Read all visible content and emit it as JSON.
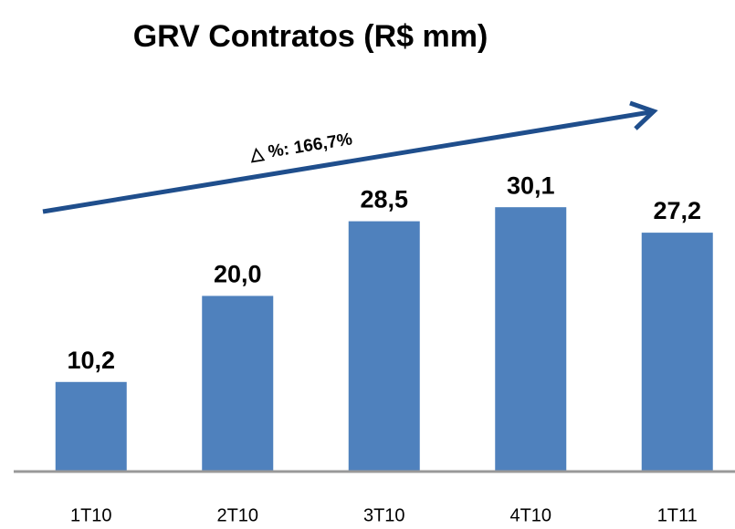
{
  "chart_data": {
    "type": "bar",
    "title": "GRV Contratos (R$ mm)",
    "annotation": "△ %: 166,7%",
    "categories": [
      "1T10",
      "2T10",
      "3T10",
      "4T10",
      "1T11"
    ],
    "values": [
      10.2,
      20.0,
      28.5,
      30.1,
      27.2
    ],
    "value_labels": [
      "10,2",
      "20,0",
      "28,5",
      "30,1",
      "27,2"
    ],
    "color": "#4f81bd",
    "ylim": [
      0,
      35
    ]
  }
}
